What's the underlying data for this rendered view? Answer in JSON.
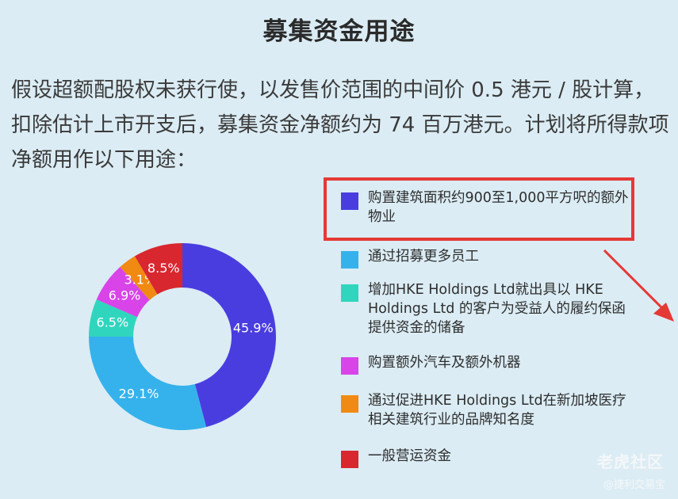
{
  "title": "募集资金用途",
  "intro": "假设超额配股权未获行使，以发售价范围的中间价 0.5 港元 / 股计算，扣除估计上市开支后，募集资金净额约为 74 百万港元。计划将所得款项净额用作以下用途：",
  "watermark": {
    "brand": "老虎社区",
    "handle": "@捷利交易宝"
  },
  "chart_data": {
    "type": "pie",
    "donut": true,
    "categories": [
      "购置建筑面积约900至1,000平方呎的额外物业",
      "通过招募更多员工",
      "增加HKE Holdings Ltd就出具以 HKE Holdings Ltd 的客户为受益人的履约保函提供资金的储备",
      "购置额外汽车及额外机器",
      "通过促进HKE Holdings Ltd在新加坡医疗相关建筑行业的品牌知名度",
      "一般营运资金"
    ],
    "values": [
      45.9,
      29.1,
      6.5,
      6.9,
      3.1,
      8.5
    ],
    "data_labels": [
      "45.9%",
      "29.1%",
      "6.5%",
      "6.9%",
      "3.1%",
      "8.5%"
    ],
    "colors": [
      "#4a3de0",
      "#35b2ec",
      "#2fd6bd",
      "#d844e8",
      "#f08a12",
      "#d8272e"
    ],
    "legend_placement": "right",
    "highlighted_index": 0
  }
}
